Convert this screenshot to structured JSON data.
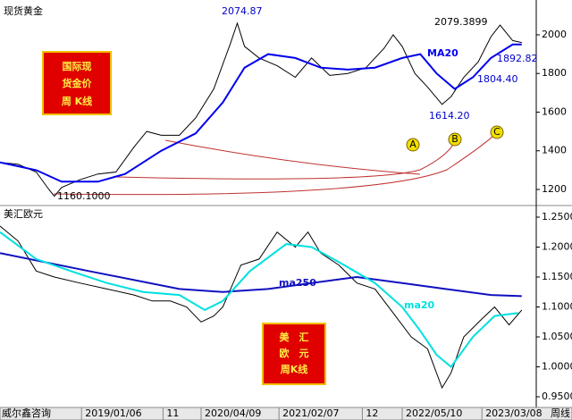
{
  "chart_data": [
    {
      "type": "line",
      "title": "现货黄金",
      "xlim": [
        0,
        296
      ],
      "ylim": [
        1126,
        2157
      ],
      "yticks": [
        1200,
        1400,
        1600,
        1800,
        2000
      ],
      "series": [
        {
          "color": "#000000",
          "x": [
            0,
            10,
            20,
            27,
            30,
            34,
            44,
            54,
            64,
            74,
            81,
            89,
            99,
            108,
            118,
            127,
            131,
            135,
            143,
            153,
            163,
            172,
            182,
            192,
            202,
            212,
            217,
            222,
            229,
            236,
            244,
            249,
            256,
            264,
            271,
            276,
            283,
            288
          ],
          "values": [
            1340,
            1330,
            1290,
            1200,
            1165,
            1210,
            1250,
            1280,
            1290,
            1420,
            1500,
            1480,
            1480,
            1570,
            1720,
            1950,
            2060,
            1940,
            1880,
            1840,
            1780,
            1880,
            1790,
            1800,
            1830,
            1930,
            2000,
            1940,
            1800,
            1730,
            1640,
            1680,
            1780,
            1860,
            1990,
            2050,
            1970,
            1960
          ]
        },
        {
          "name": "MA20",
          "color": "#0000ee",
          "x": [
            0,
            20,
            34,
            54,
            69,
            89,
            108,
            123,
            135,
            148,
            163,
            177,
            192,
            207,
            222,
            232,
            241,
            251,
            261,
            271,
            283,
            288
          ],
          "values": [
            1340,
            1300,
            1240,
            1240,
            1280,
            1400,
            1490,
            1650,
            1830,
            1900,
            1880,
            1830,
            1820,
            1830,
            1880,
            1900,
            1800,
            1720,
            1780,
            1880,
            1950,
            1950
          ]
        }
      ],
      "annotations": [
        "2074.87",
        "2079.3899",
        "1892.82",
        "1804.40",
        "1614.20",
        "1160.1000",
        "国际现",
        "货金价",
        "周 K线",
        "A",
        "B",
        "C"
      ]
    },
    {
      "type": "line",
      "title": "美汇欧元",
      "xlim": [
        0,
        296
      ],
      "ylim": [
        0.9336,
        1.2664
      ],
      "yticks": [
        {
          "value": 0.95,
          "label": "0.9500"
        },
        {
          "value": 1.0,
          "label": "1.0000"
        },
        {
          "value": 1.05,
          "label": "1.0500"
        },
        {
          "value": 1.1,
          "label": "1.1000"
        },
        {
          "value": 1.15,
          "label": "1.1500"
        },
        {
          "value": 1.2,
          "label": "1.2000"
        },
        {
          "value": 1.25,
          "label": "1.2500"
        }
      ],
      "xticks": [
        {
          "value": 45,
          "label": "2019/01/06"
        },
        {
          "value": 90,
          "label": "11"
        },
        {
          "value": 111,
          "label": "2020/04/09"
        },
        {
          "value": 154,
          "label": "2021/02/07"
        },
        {
          "value": 200,
          "label": "12"
        },
        {
          "value": 222,
          "label": "2022/05/10"
        },
        {
          "value": 266,
          "label": "2023/03/08"
        }
      ],
      "series": [
        {
          "color": "#000000",
          "x": [
            0,
            10,
            20,
            30,
            44,
            59,
            74,
            84,
            94,
            103,
            111,
            118,
            123,
            133,
            143,
            153,
            163,
            170,
            177,
            187,
            197,
            207,
            217,
            227,
            236,
            244,
            249,
            256,
            266,
            273,
            281,
            288
          ],
          "values": [
            1.235,
            1.21,
            1.16,
            1.15,
            1.14,
            1.13,
            1.12,
            1.11,
            1.11,
            1.1,
            1.075,
            1.085,
            1.1,
            1.17,
            1.18,
            1.225,
            1.2,
            1.225,
            1.19,
            1.17,
            1.14,
            1.13,
            1.09,
            1.05,
            1.03,
            0.965,
            0.99,
            1.05,
            1.08,
            1.1,
            1.07,
            1.095
          ]
        },
        {
          "name": "ma250",
          "color": "#1010c0",
          "x": [
            0,
            49,
            99,
            123,
            148,
            172,
            197,
            222,
            246,
            271,
            288
          ],
          "values": [
            1.19,
            1.16,
            1.13,
            1.125,
            1.13,
            1.14,
            1.15,
            1.14,
            1.13,
            1.12,
            1.118
          ]
        },
        {
          "name": "ma20",
          "color": "#00e0e0",
          "x": [
            0,
            20,
            39,
            59,
            79,
            99,
            113,
            123,
            138,
            158,
            172,
            187,
            207,
            222,
            232,
            241,
            249,
            261,
            273,
            286
          ],
          "values": [
            1.225,
            1.18,
            1.16,
            1.14,
            1.125,
            1.12,
            1.095,
            1.11,
            1.16,
            1.205,
            1.2,
            1.175,
            1.14,
            1.1,
            1.06,
            1.02,
            1.0,
            1.05,
            1.085,
            1.09
          ]
        }
      ],
      "annotations": [
        "美　汇",
        "欧　元",
        "周K线"
      ]
    }
  ],
  "footer": {
    "left": "威尔鑫咨询",
    "right": "周线"
  }
}
